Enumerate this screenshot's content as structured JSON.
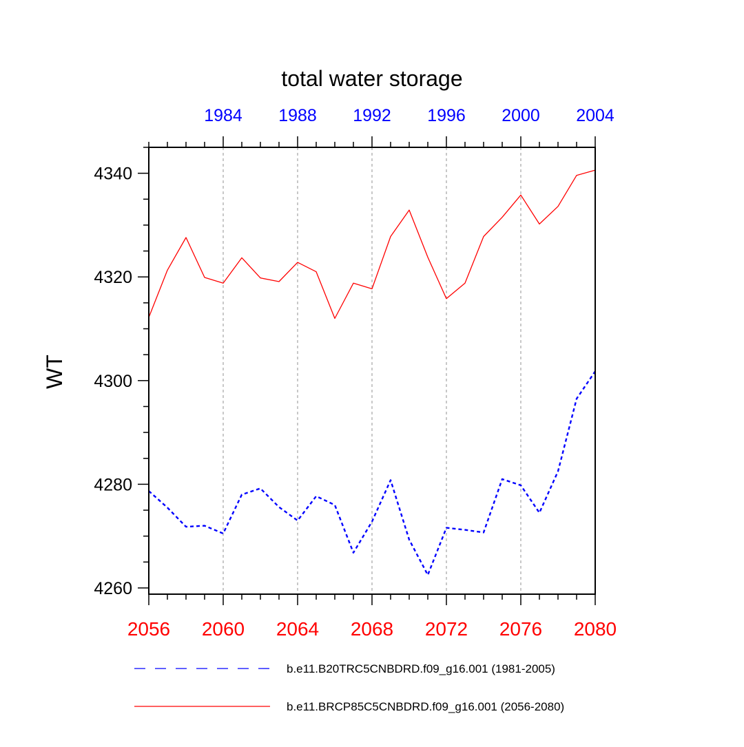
{
  "chart_data": {
    "type": "line",
    "title": "total water storage",
    "xlabel": "",
    "ylabel": "WT",
    "xlim": [
      2056,
      2080
    ],
    "ylim": [
      4258.8,
      4345
    ],
    "x_ticks_bottom": [
      2056,
      2060,
      2064,
      2068,
      2072,
      2076,
      2080
    ],
    "x_tick_labels_bottom": [
      "2056",
      "2060",
      "2064",
      "2068",
      "2072",
      "2076",
      "2080"
    ],
    "x_ticks_top": [
      1984,
      1988,
      1992,
      1996,
      2000,
      2004
    ],
    "x_tick_labels_top": [
      "1984",
      "1988",
      "1992",
      "1996",
      "2000",
      "2004"
    ],
    "top_axis_offset_years": 76,
    "y_ticks": [
      4260,
      4280,
      4300,
      4320,
      4340
    ],
    "y_tick_labels": [
      "4260",
      "4280",
      "4300",
      "4320",
      "4340"
    ],
    "vertical_gridlines": [
      2060,
      2064,
      2068,
      2072,
      2076
    ],
    "x": [
      2056,
      2057,
      2058,
      2059,
      2060,
      2061,
      2062,
      2063,
      2064,
      2065,
      2066,
      2067,
      2068,
      2069,
      2070,
      2071,
      2072,
      2073,
      2074,
      2075,
      2076,
      2077,
      2078,
      2079,
      2080
    ],
    "series": [
      {
        "name": "b.e11.B20TRC5CNBDRD.f09_g16.001 (1981-2005)",
        "color": "#0000ff",
        "style": "dashed",
        "values": [
          4278.7,
          4275.5,
          4271.8,
          4272.0,
          4270.5,
          4278.0,
          4279.2,
          4275.6,
          4273.0,
          4277.7,
          4276.0,
          4266.8,
          4272.8,
          4280.8,
          4269.3,
          4262.5,
          4271.6,
          4271.2,
          4270.7,
          4281.0,
          4279.8,
          4274.5,
          4282.5,
          4296.5,
          4301.8
        ]
      },
      {
        "name": "b.e11.BRCP85C5CNBDRD.f09_g16.001 (2056-2080)",
        "color": "#ff0000",
        "style": "solid",
        "values": [
          4312.2,
          4321.3,
          4327.6,
          4319.9,
          4318.8,
          4323.7,
          4319.8,
          4319.1,
          4322.8,
          4321.0,
          4312.0,
          4318.8,
          4317.7,
          4327.8,
          4332.9,
          4323.8,
          4315.8,
          4318.8,
          4327.8,
          4331.5,
          4335.8,
          4330.2,
          4333.6,
          4339.6,
          4340.6
        ]
      }
    ],
    "legend_position": "bottom"
  }
}
